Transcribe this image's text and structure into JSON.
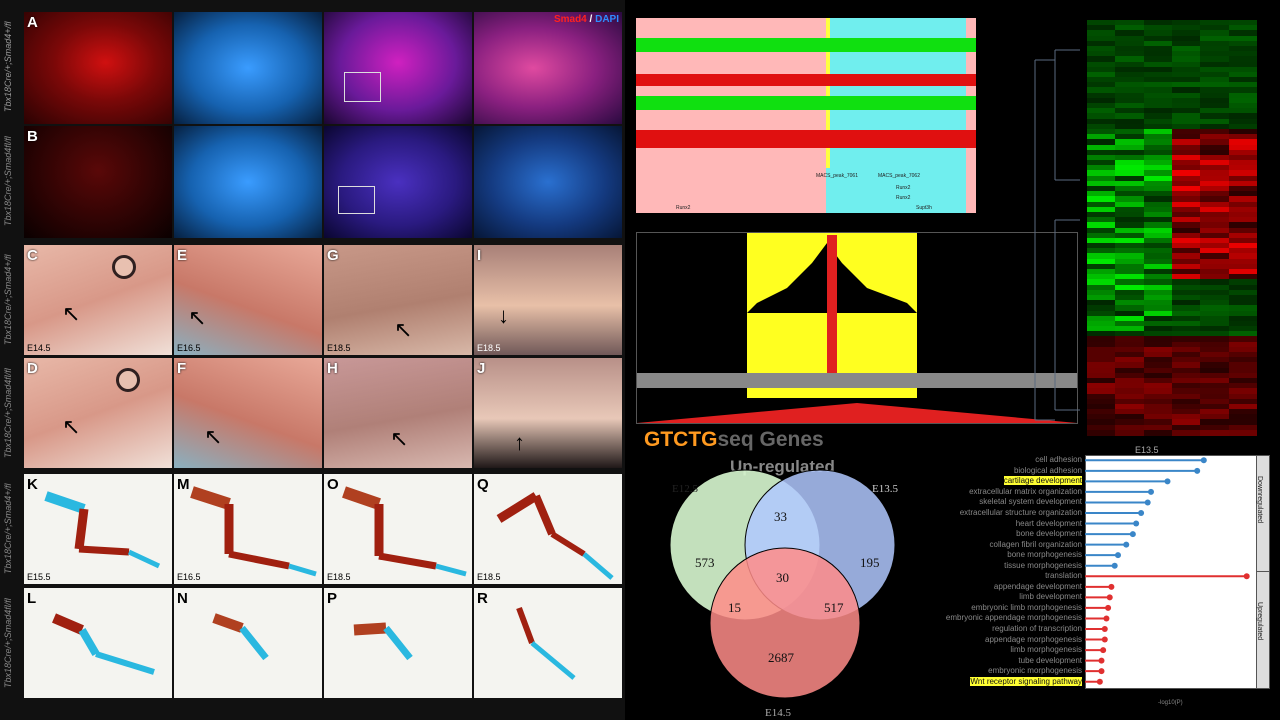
{
  "title_topright_a": "Smad4",
  "title_topright_sep": " / ",
  "title_topright_b": "DAPI",
  "panel_labels": [
    "A",
    "B",
    "C",
    "D",
    "E",
    "F",
    "G",
    "H",
    "I",
    "J",
    "K",
    "L",
    "M",
    "N",
    "O",
    "P",
    "Q",
    "R"
  ],
  "genotype_a": "Tbx18Cre/+;Smad4+/fl",
  "genotype_b": "Tbx18Cre/+;Smad4fl/fl",
  "genotype_c": "Tbx18Cre/+;Smad4+/fl",
  "genotype_d": "Tbx18Cre/+;Smad4fl/fl",
  "genotype_k": "Tbx18Cre/+;Smad4+/fl",
  "genotype_l": "Tbx18Cre/+;Smad4fl/fl",
  "stages_row3": [
    "E14.5",
    "E16.5",
    "E18.5",
    "E18.5"
  ],
  "stages_row5": [
    "E15.5",
    "E16.5",
    "E18.5",
    "E18.5"
  ],
  "track_peaks": [
    "MACS_peak_7061",
    "MACS_peak_7062"
  ],
  "track_genes": [
    "Runx2",
    "Runx2",
    "Runx2",
    "Supt3h"
  ],
  "motif_text": "GTCTG",
  "motif_suffix": "seq Genes",
  "venn": {
    "title": "Up-regulated",
    "labels": [
      "E12.5",
      "E13.5",
      "E14.5"
    ],
    "values": {
      "a_only": "573",
      "b_only": "195",
      "c_only": "2687",
      "ab": "33",
      "ac": "15",
      "bc": "517",
      "abc": "30"
    }
  },
  "go": {
    "title": "E13.5",
    "section_down": "Downregulated",
    "section_up": "Upregulated",
    "down_terms": [
      "cell adhesion",
      "biological adhesion",
      "cartilage development",
      "extracellular matrix organization",
      "skeletal system development",
      "extracellular structure organization",
      "heart development",
      "bone development",
      "collagen fibril organization",
      "bone morphogenesis",
      "tissue morphogenesis"
    ],
    "up_terms": [
      "translation",
      "appendage development",
      "limb development",
      "embryonic limb morphogenesis",
      "embryonic appendage morphogenesis",
      "regulation of transcription",
      "appendage morphogenesis",
      "limb morphogenesis",
      "tube development",
      "embryonic morphogenesis",
      "Wnt receptor signaling pathway"
    ],
    "highlighted": [
      "cartilage development",
      "Wnt receptor signaling pathway"
    ],
    "down_values": [
      0.72,
      0.68,
      0.5,
      0.4,
      0.38,
      0.34,
      0.31,
      0.29,
      0.25,
      0.2,
      0.18
    ],
    "up_values": [
      0.98,
      0.16,
      0.15,
      0.14,
      0.13,
      0.12,
      0.12,
      0.11,
      0.1,
      0.1,
      0.09
    ],
    "xlabel": "-log10(P)",
    "colors": {
      "down": "#3a86c8",
      "up": "#e03030",
      "highlight": "#ffff33"
    }
  },
  "colors": {
    "smad4": "#ff2020",
    "dapi": "#2f8cff",
    "heat_red": "#ff2020",
    "heat_green": "#20ff20"
  }
}
